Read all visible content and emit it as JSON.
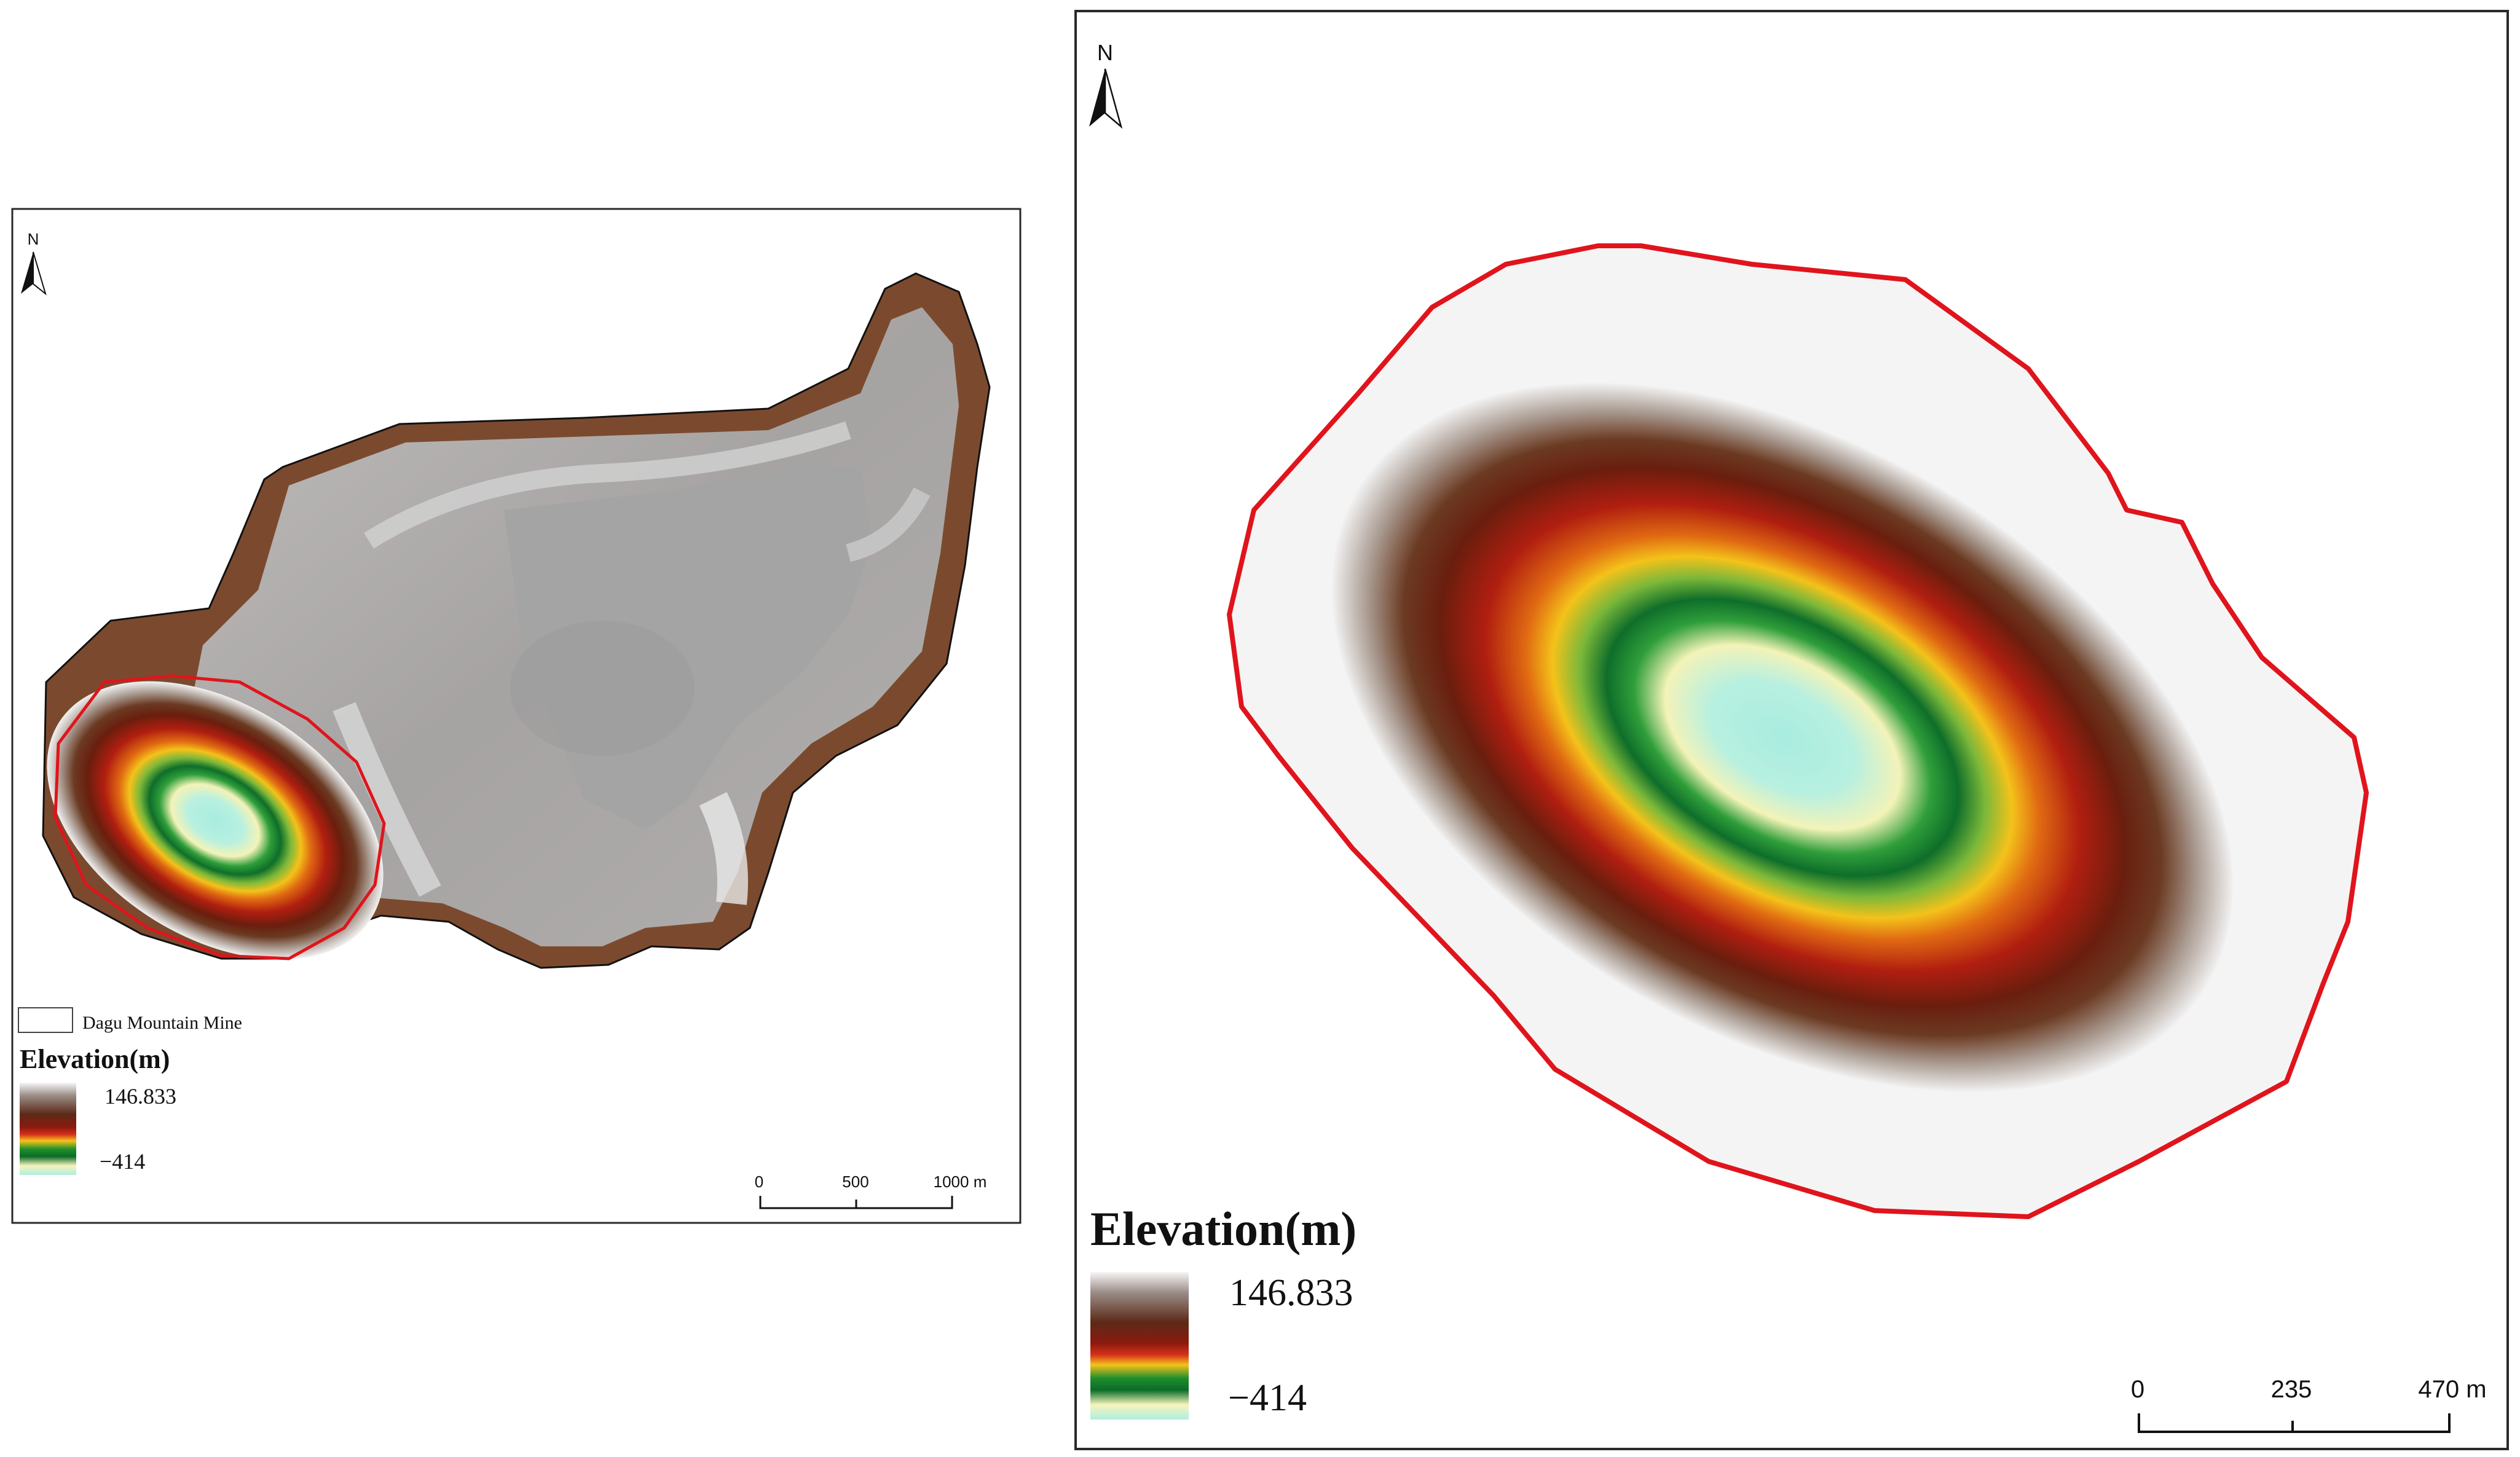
{
  "left_map": {
    "north_label": "N",
    "legend": {
      "boundary_label": "Dagu Mountain Mine",
      "title": "Elevation(m)",
      "max_label": "146.833",
      "min_label": "−414"
    },
    "scale_bar": {
      "ticks": [
        "0",
        "500",
        "1000 m"
      ]
    }
  },
  "right_map": {
    "north_label": "N",
    "legend": {
      "title": "Elevation(m)",
      "max_label": "146.833",
      "min_label": "−414"
    },
    "scale_bar": {
      "ticks": [
        "0",
        "235",
        "470 m"
      ]
    }
  },
  "colors": {
    "pit_boundary": "#e0141c",
    "mine_outline": "#000000",
    "ramp": [
      "#f4f4f4",
      "#a9a9a9",
      "#6b3a22",
      "#5c1a0c",
      "#b81e10",
      "#e06a12",
      "#f4c21a",
      "#1f8f2c",
      "#0c6b28",
      "#f6f4bc",
      "#aeeee0"
    ]
  },
  "icons": [
    "north-arrow-icon"
  ]
}
